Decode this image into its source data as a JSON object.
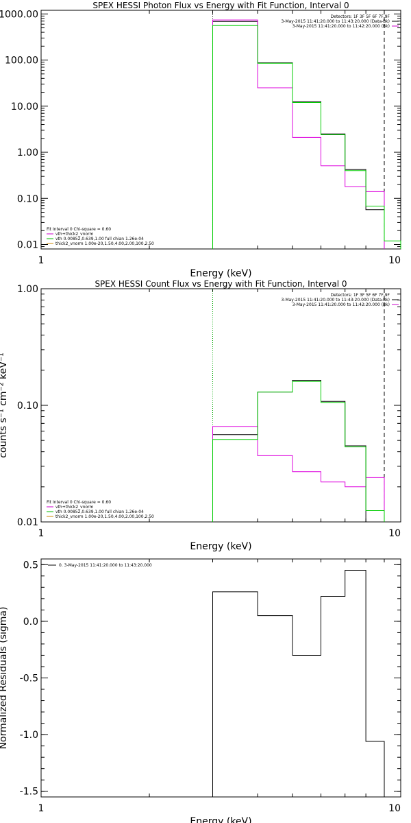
{
  "chart_data": [
    {
      "type": "line",
      "title": "SPEX HESSI Photon Flux vs Energy with Fit Function, Interval 0",
      "xlabel": "Energy (keV)",
      "ylabel": "",
      "xscale": "log",
      "yscale": "log",
      "xlim": [
        1,
        10
      ],
      "ylim": [
        0.008,
        1200
      ],
      "xticks": [
        {
          "v": 1,
          "label": "1"
        },
        {
          "v": 10,
          "label": "10"
        }
      ],
      "yticks": [
        {
          "v": 1000,
          "label": "1000.00"
        },
        {
          "v": 100,
          "label": "100.00"
        },
        {
          "v": 10,
          "label": "10.00"
        },
        {
          "v": 1,
          "label": "1.00"
        },
        {
          "v": 0.1,
          "label": "0.10"
        },
        {
          "v": 0.01,
          "label": "0.01"
        }
      ],
      "legend_top": [
        {
          "text": "Detectors: 1F 3F 5F 6F 7F 9F",
          "color": ""
        },
        {
          "text": "3-May-2015 11:41:20.000 to 11:43:20.000 (Data-Bk)",
          "color": "#000000"
        },
        {
          "text": "3-May-2015 11:41:20.000 to 11:42:20.000 (Bk)",
          "color": "#cc00cc"
        }
      ],
      "legend_bottom": [
        {
          "text": "Fit Interval 0   Chi-square = 0.60",
          "color": ""
        },
        {
          "text": "vth+thick2_vnorm",
          "color": "#cc00cc"
        },
        {
          "text": "vth 0.00852,0.639,1.00  full chian 1.26e-04",
          "color": "#00bb00"
        },
        {
          "text": "thick2_vnorm 1.00e-20,1.50,4.00,2.00,100,2.50",
          "color": "#cc8800"
        }
      ],
      "vlines": [
        {
          "x": 3.0,
          "style": "dotted",
          "color": "#00aa00"
        },
        {
          "x": 3.0,
          "style": "dotted",
          "color": "#000000"
        },
        {
          "x": 9.0,
          "style": "dashed",
          "color": "#000000"
        }
      ],
      "series": [
        {
          "color": "#000000",
          "edges": [
            3.0,
            4.0,
            5.0,
            6.0,
            7.0,
            8.0,
            9.0
          ],
          "values": [
            690,
            87,
            12.5,
            2.5,
            0.42,
            0.057
          ]
        },
        {
          "color": "#dd00dd",
          "edges": [
            3.0,
            4.0,
            5.0,
            6.0,
            7.0,
            8.0,
            9.0
          ],
          "values": [
            740,
            25,
            2.1,
            0.51,
            0.18,
            0.14
          ]
        },
        {
          "color": "#00cc00",
          "edges": [
            3.0,
            4.0,
            5.0,
            6.0,
            7.0,
            8.0,
            9.0,
            10.0
          ],
          "values": [
            560,
            85,
            12,
            2.4,
            0.4,
            0.068,
            0.012
          ]
        }
      ]
    },
    {
      "type": "line",
      "title": "SPEX HESSI Count Flux vs Energy with Fit Function, Interval 0",
      "xlabel": "Energy (keV)",
      "ylabel": "counts s⁻¹ cm⁻² keV⁻¹",
      "xscale": "log",
      "yscale": "log",
      "xlim": [
        1,
        10
      ],
      "ylim": [
        0.01,
        1.0
      ],
      "xticks": [
        {
          "v": 1,
          "label": "1"
        },
        {
          "v": 10,
          "label": "10"
        }
      ],
      "yticks": [
        {
          "v": 1.0,
          "label": "1.00"
        },
        {
          "v": 0.1,
          "label": "0.10"
        },
        {
          "v": 0.01,
          "label": "0.01"
        }
      ],
      "legend_top": [
        {
          "text": "Detectors: 1F 3F 5F 6F 7F 9F",
          "color": ""
        },
        {
          "text": "3-May-2015 11:41:20.000 to 11:43:20.000 (Data-Bk)",
          "color": "#000000"
        },
        {
          "text": "3-May-2015 11:41:20.000 to 11:42:20.000 (Bk)",
          "color": "#cc00cc"
        }
      ],
      "legend_bottom": [
        {
          "text": "Fit Interval 0   Chi-square = 0.60",
          "color": ""
        },
        {
          "text": "vth+thick2_vnorm",
          "color": "#cc00cc"
        },
        {
          "text": "vth 0.00852,0.639,1.00  full chian 1.26e-04",
          "color": "#00bb00"
        },
        {
          "text": "thick2_vnorm 1.00e-20,1.50,4.00,2.00,100,2.50",
          "color": "#cc8800"
        }
      ],
      "vlines": [
        {
          "x": 3.0,
          "style": "dotted",
          "color": "#000000"
        },
        {
          "x": 3.0,
          "style": "dotted",
          "color": "#00aa00"
        },
        {
          "x": 9.0,
          "style": "dashed",
          "color": "#000000"
        }
      ],
      "series": [
        {
          "color": "#000000",
          "edges": [
            3.0,
            4.0,
            5.0,
            6.0,
            7.0,
            8.0,
            9.0
          ],
          "values": [
            0.056,
            0.13,
            0.164,
            0.108,
            0.045,
            0.01
          ]
        },
        {
          "color": "#dd00dd",
          "edges": [
            3.0,
            4.0,
            5.0,
            6.0,
            7.0,
            8.0,
            9.0
          ],
          "values": [
            0.066,
            0.037,
            0.027,
            0.022,
            0.02,
            0.024
          ]
        },
        {
          "color": "#00cc00",
          "edges": [
            3.0,
            4.0,
            5.0,
            6.0,
            7.0,
            8.0,
            9.0
          ],
          "values": [
            0.051,
            0.13,
            0.16,
            0.106,
            0.044,
            0.0125
          ]
        }
      ]
    },
    {
      "type": "line",
      "title": "",
      "xlabel": "Energy (keV)",
      "ylabel": "Normalized Residuals (sigma)",
      "xscale": "log",
      "yscale": "linear",
      "xlim": [
        1,
        10
      ],
      "ylim": [
        -1.55,
        0.55
      ],
      "xticks": [
        {
          "v": 1,
          "label": "1"
        },
        {
          "v": 10,
          "label": "10"
        }
      ],
      "yticks": [
        {
          "v": 0.5,
          "label": "0.5"
        },
        {
          "v": 0.0,
          "label": "0.0"
        },
        {
          "v": -0.5,
          "label": "-0.5"
        },
        {
          "v": -1.0,
          "label": "-1.0"
        },
        {
          "v": -1.5,
          "label": "-1.5"
        }
      ],
      "legend_top": [
        {
          "text": "0. 3-May-2015 11:41:20.000 to 11:43:20.000",
          "color": "#000000"
        }
      ],
      "legend_bottom": [],
      "vlines": [],
      "series": [
        {
          "color": "#000000",
          "edges": [
            3.0,
            4.0,
            5.0,
            6.0,
            7.0,
            8.0,
            9.0
          ],
          "values": [
            0.26,
            0.05,
            -0.3,
            0.22,
            0.45,
            -1.06
          ],
          "drop_to_bottom": true
        }
      ]
    }
  ]
}
